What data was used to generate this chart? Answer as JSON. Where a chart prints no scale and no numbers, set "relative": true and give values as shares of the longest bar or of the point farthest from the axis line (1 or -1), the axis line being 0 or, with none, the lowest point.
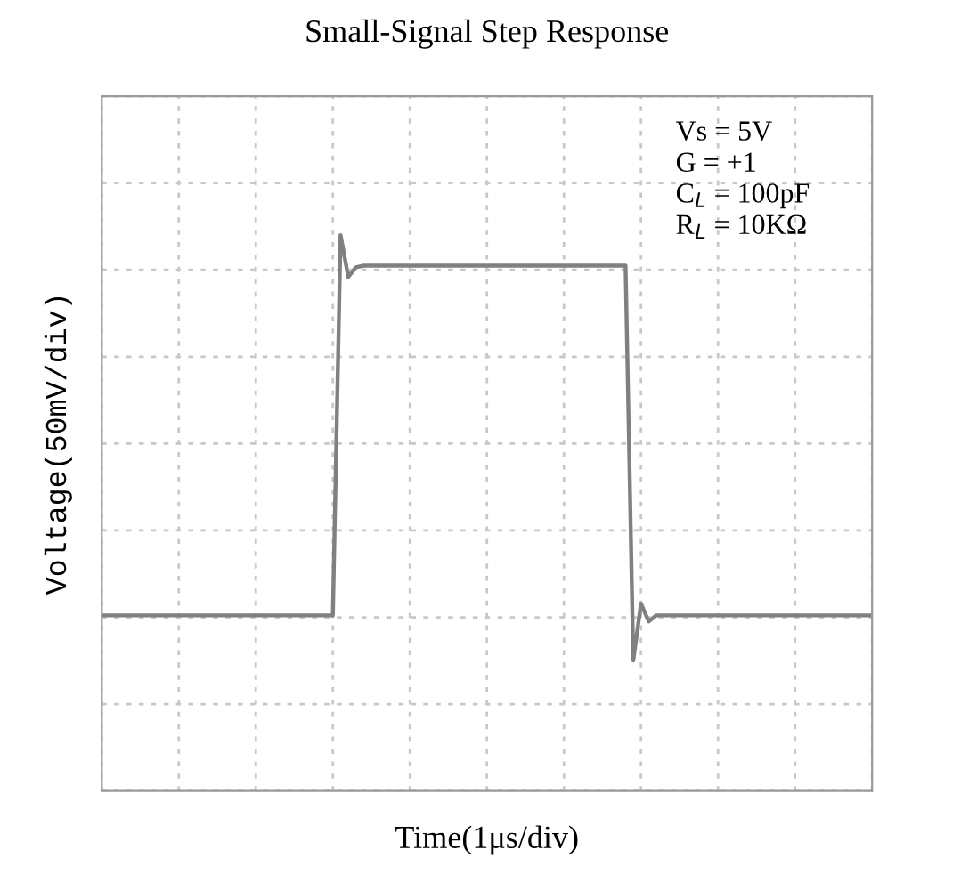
{
  "chart_data": {
    "type": "line",
    "title": "Small-Signal Step Response",
    "xlabel": "Time(1μs/div)",
    "ylabel": "Voltage(50mV/div)",
    "annotations": [
      "Vs = 5V",
      "G = +1",
      "C$_{L}$ = 100pF",
      "R$_{L}$ = 10KΩ"
    ],
    "relative": true,
    "grid": true,
    "marker": "none",
    "line_style": "solid",
    "categories": [
      null,
      null,
      null,
      null,
      null,
      null,
      null,
      null,
      null,
      null,
      null,
      null,
      null,
      null,
      null,
      null,
      null,
      null,
      null,
      null,
      null,
      null,
      null,
      null,
      null,
      null,
      null,
      null,
      null,
      null,
      null,
      null,
      null,
      null,
      null,
      null,
      null,
      null,
      null,
      null,
      null,
      null,
      null,
      null,
      null,
      null,
      null,
      null,
      null,
      null,
      null,
      null,
      null,
      null,
      null,
      null,
      null,
      null,
      null,
      null,
      null,
      null,
      null,
      null,
      null,
      null,
      null,
      null,
      null,
      null,
      null,
      null,
      null,
      null,
      null,
      null,
      null,
      null,
      null,
      null,
      null,
      null,
      null,
      null,
      null,
      null,
      null,
      null,
      null,
      null,
      null,
      null,
      null,
      null,
      null,
      null,
      null,
      null,
      null,
      null,
      null
    ],
    "series": [
      {
        "color": "#808080",
        "values": [
          0.316,
          0.316,
          0.316,
          0.316,
          0.316,
          0.316,
          0.316,
          0.316,
          0.316,
          0.316,
          0.316,
          0.316,
          0.316,
          0.316,
          0.316,
          0.316,
          0.316,
          0.316,
          0.316,
          0.316,
          0.316,
          0.316,
          0.316,
          0.316,
          0.316,
          0.316,
          0.316,
          0.316,
          0.316,
          0.316,
          0.316,
          1.0,
          0.925,
          0.942,
          0.945,
          0.945,
          0.945,
          0.945,
          0.945,
          0.945,
          0.945,
          0.945,
          0.945,
          0.945,
          0.945,
          0.945,
          0.945,
          0.945,
          0.945,
          0.945,
          0.945,
          0.945,
          0.945,
          0.945,
          0.945,
          0.945,
          0.945,
          0.945,
          0.945,
          0.945,
          0.945,
          0.945,
          0.945,
          0.945,
          0.945,
          0.945,
          0.945,
          0.945,
          0.945,
          0.235,
          0.337,
          0.305,
          0.316,
          0.316,
          0.316,
          0.316,
          0.316,
          0.316,
          0.316,
          0.316,
          0.316,
          0.316,
          0.316,
          0.316,
          0.316,
          0.316,
          0.316,
          0.316,
          0.316,
          0.316,
          0.316,
          0.316,
          0.316,
          0.316,
          0.316,
          0.316,
          0.316,
          0.316,
          0.316,
          0.316,
          0.316
        ]
      }
    ]
  }
}
